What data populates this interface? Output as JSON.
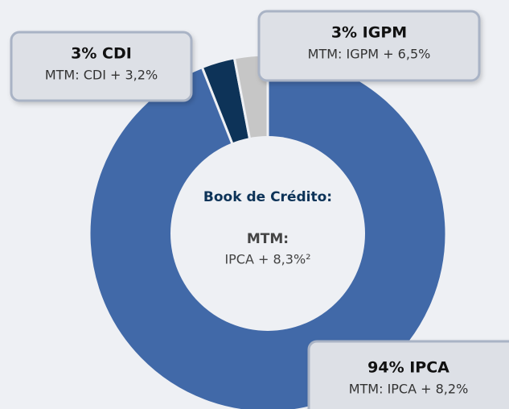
{
  "chart_data": {
    "type": "donut",
    "values": [
      3,
      3,
      94
    ],
    "value_labels": [
      "3% CDI",
      "3% IGPM",
      "94% IPCA"
    ],
    "sublabels": [
      "MTM: CDI + 3,2%",
      "MTM: IGPM + 6,5%",
      "MTM: IPCA + 8,2%"
    ],
    "colors": [
      "#0d3358",
      "#c6c6c6",
      "#4169a8"
    ],
    "center_title": "Book de Crédito:",
    "center_subtitle": "MTM:",
    "center_text": "IPCA + 8,3%²"
  }
}
